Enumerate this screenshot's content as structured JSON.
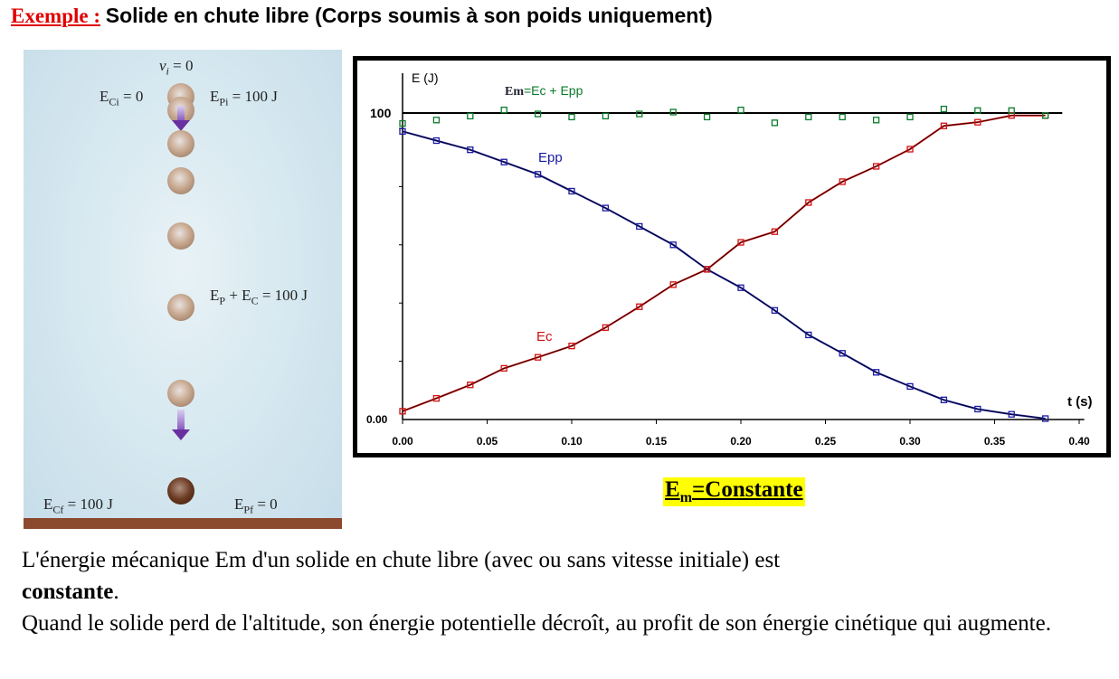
{
  "title": {
    "prefix": "Exemple :",
    "text": "Solide en chute libre (Corps soumis à son poids uniquement)"
  },
  "figure": {
    "vi": "v",
    "vi_sub": "i",
    "vi_val": " = 0",
    "eci": "E",
    "eci_sub": "Ci",
    "eci_val": " = 0",
    "epi": "E",
    "epi_sub": "Pi",
    "epi_val": " = 100 J",
    "mid_ep": "E",
    "mid_ep_sub": "P",
    "mid_plus": " + E",
    "mid_ec_sub": "C",
    "mid_val": " = 100 J",
    "ecf": "E",
    "ecf_sub": "Cf",
    "ecf_val": " = 100 J",
    "epf": "E",
    "epf_sub": "Pf",
    "epf_val": " = 0"
  },
  "chart_data": {
    "type": "scatter",
    "xlabel": "t (s)",
    "ylabel": "E (J)",
    "xlim": [
      0,
      0.403
    ],
    "ylim": [
      0,
      113
    ],
    "xticks": [
      "0.00",
      "0.05",
      "0.10",
      "0.15",
      "0.20",
      "0.25",
      "0.30",
      "0.35",
      "0.40"
    ],
    "yticks": [
      "0.00",
      "100"
    ],
    "annotation_em": "Em",
    "annotation_em_rest": "=Ec + Epp",
    "x": [
      0,
      0.02,
      0.04,
      0.06,
      0.08,
      0.1,
      0.12,
      0.14,
      0.16,
      0.18,
      0.2,
      0.22,
      0.24,
      0.26,
      0.28,
      0.3,
      0.32,
      0.34,
      0.36,
      0.38
    ],
    "series": [
      {
        "name": "Epp",
        "color": "#1a1aa0",
        "values": [
          94,
          91,
          88,
          84,
          80,
          74.5,
          69,
          63,
          57,
          49,
          43,
          35.6,
          27.6,
          21.6,
          15.4,
          10.8,
          6.4,
          3.4,
          1.7,
          0.3
        ]
      },
      {
        "name": "Ec",
        "color": "#d01010",
        "values": [
          2.7,
          6.9,
          11.3,
          16.7,
          20.3,
          24,
          30,
          36.8,
          44,
          49,
          57.8,
          61.3,
          70.8,
          77.6,
          82.6,
          88.2,
          95.8,
          97,
          99.2,
          99.2
        ]
      },
      {
        "name": "Em",
        "color": "#0a7a2a",
        "values": [
          96.6,
          97.7,
          99,
          101,
          99.7,
          98.7,
          99,
          99.7,
          100.3,
          98.7,
          101,
          96.8,
          98.7,
          98.7,
          97.7,
          98.7,
          101.3,
          100.8,
          100.8,
          99.2
        ]
      }
    ]
  },
  "constante": {
    "e": "E",
    "sub": "m",
    "rest": "=Constante"
  },
  "paragraph": {
    "line1": "L'énergie mécanique Em d'un solide en chute libre (avec ou sans vitesse initiale) est",
    "bold": "constante",
    "dot": ".",
    "line2": "Quand le solide perd de l'altitude, son énergie potentielle décroît, au profit  de son énergie cinétique qui augmente."
  }
}
